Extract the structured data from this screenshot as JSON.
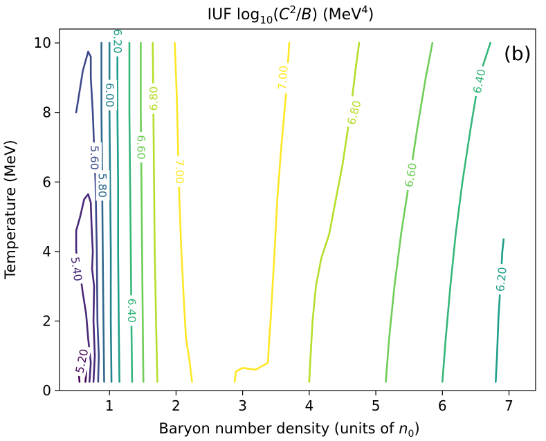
{
  "chart_data": {
    "type": "contour",
    "title_main": "IUF log",
    "title_sub": "10",
    "title_var_c": "C",
    "title_sup2": "2",
    "title_slash": "/",
    "title_var_b": "B",
    "title_units_prefix": ") (MeV",
    "title_sup4": "4",
    "title_units_suffix": ")",
    "panel_label": "(b)",
    "xlabel": "Baryon number density (units of ",
    "xlabel_var": "n",
    "xlabel_sub": "0",
    "xlabel_end": ")",
    "ylabel": "Temperature (MeV)",
    "xlim": [
      0.25,
      7.4
    ],
    "ylim": [
      0,
      10.4
    ],
    "x_ticks": [
      1,
      2,
      3,
      4,
      5,
      6,
      7
    ],
    "x_tick_labels": [
      "1",
      "2",
      "3",
      "4",
      "5",
      "6",
      "7"
    ],
    "y_ticks": [
      0,
      2,
      4,
      6,
      8,
      10
    ],
    "y_tick_labels": [
      "0",
      "2",
      "4",
      "6",
      "8",
      "10"
    ],
    "contours": [
      {
        "level": "5.20",
        "color": "#440154",
        "segments": [
          [
            [
              0.55,
              0.25
            ],
            [
              0.54,
              0.5
            ],
            [
              0.56,
              0.8
            ],
            [
              0.6,
              0.9
            ],
            [
              0.64,
              0.75
            ],
            [
              0.65,
              0.5
            ],
            [
              0.64,
              0.25
            ]
          ]
        ]
      },
      {
        "level": "5.40",
        "color": "#482878",
        "segments": [
          [
            [
              0.7,
              0.25
            ],
            [
              0.72,
              0.8
            ],
            [
              0.68,
              1.5
            ],
            [
              0.65,
              2.2
            ],
            [
              0.6,
              2.8
            ],
            [
              0.55,
              3.5
            ],
            [
              0.5,
              4.0
            ],
            [
              0.5,
              4.6
            ],
            [
              0.56,
              5.0
            ],
            [
              0.62,
              5.5
            ],
            [
              0.68,
              5.65
            ],
            [
              0.72,
              5.4
            ],
            [
              0.73,
              4.8
            ],
            [
              0.75,
              4.0
            ],
            [
              0.74,
              3.5
            ],
            [
              0.77,
              3.0
            ],
            [
              0.76,
              2.0
            ],
            [
              0.78,
              1.0
            ],
            [
              0.76,
              0.25
            ]
          ]
        ]
      },
      {
        "level": "5.60",
        "color": "#3e4989",
        "segments": [
          [
            [
              0.5,
              8.0
            ],
            [
              0.55,
              8.6
            ],
            [
              0.6,
              9.2
            ],
            [
              0.68,
              9.75
            ],
            [
              0.72,
              9.6
            ],
            [
              0.72,
              9.0
            ],
            [
              0.75,
              8.0
            ],
            [
              0.77,
              7.0
            ],
            [
              0.79,
              6.0
            ],
            [
              0.81,
              4.0
            ],
            [
              0.82,
              2.0
            ],
            [
              0.84,
              1.0
            ],
            [
              0.83,
              0.25
            ]
          ]
        ]
      },
      {
        "level": "5.80",
        "color": "#31688e",
        "segments": [
          [
            [
              0.88,
              10.0
            ],
            [
              0.88,
              8.0
            ],
            [
              0.89,
              6.0
            ],
            [
              0.9,
              4.0
            ],
            [
              0.91,
              2.0
            ],
            [
              0.92,
              0.25
            ]
          ]
        ]
      },
      {
        "level": "6.00",
        "color": "#26828e",
        "segments": [
          [
            [
              1.0,
              10.0
            ],
            [
              1.0,
              8.0
            ],
            [
              1.01,
              6.0
            ],
            [
              1.02,
              4.0
            ],
            [
              1.02,
              2.0
            ],
            [
              1.03,
              0.25
            ]
          ]
        ]
      },
      {
        "level": "6.20",
        "color": "#1f9e89",
        "segments": [
          [
            [
              1.12,
              10.0
            ],
            [
              1.12,
              8.0
            ],
            [
              1.13,
              6.0
            ],
            [
              1.13,
              4.0
            ],
            [
              1.14,
              2.0
            ],
            [
              1.15,
              0.25
            ]
          ],
          [
            [
              6.8,
              0.25
            ],
            [
              6.82,
              1.0
            ],
            [
              6.84,
              2.0
            ],
            [
              6.87,
              3.0
            ],
            [
              6.9,
              4.0
            ],
            [
              6.92,
              4.35
            ]
          ]
        ]
      },
      {
        "level": "6.40",
        "color": "#35b779",
        "segments": [
          [
            [
              1.3,
              10.0
            ],
            [
              1.3,
              8.0
            ],
            [
              1.31,
              6.0
            ],
            [
              1.32,
              4.0
            ],
            [
              1.33,
              2.0
            ],
            [
              1.34,
              0.25
            ]
          ],
          [
            [
              6.0,
              0.25
            ],
            [
              6.05,
              1.5
            ],
            [
              6.12,
              3.0
            ],
            [
              6.2,
              4.5
            ],
            [
              6.3,
              6.0
            ],
            [
              6.42,
              7.5
            ],
            [
              6.55,
              9.0
            ],
            [
              6.72,
              10.0
            ]
          ]
        ]
      },
      {
        "level": "6.60",
        "color": "#6ece58",
        "segments": [
          [
            [
              1.47,
              10.0
            ],
            [
              1.47,
              8.0
            ],
            [
              1.48,
              6.0
            ],
            [
              1.49,
              4.0
            ],
            [
              1.5,
              2.0
            ],
            [
              1.51,
              0.25
            ]
          ],
          [
            [
              5.15,
              0.25
            ],
            [
              5.2,
              1.5
            ],
            [
              5.28,
              3.0
            ],
            [
              5.38,
              4.5
            ],
            [
              5.5,
              6.0
            ],
            [
              5.62,
              7.5
            ],
            [
              5.75,
              9.0
            ],
            [
              5.85,
              10.0
            ]
          ]
        ]
      },
      {
        "level": "6.80",
        "color": "#b5de2b",
        "segments": [
          [
            [
              1.65,
              10.0
            ],
            [
              1.66,
              8.0
            ],
            [
              1.67,
              6.0
            ],
            [
              1.68,
              4.0
            ],
            [
              1.7,
              2.0
            ],
            [
              1.72,
              0.25
            ]
          ],
          [
            [
              4.0,
              0.25
            ],
            [
              4.02,
              1.0
            ],
            [
              4.05,
              2.0
            ],
            [
              4.1,
              3.0
            ],
            [
              4.18,
              3.8
            ],
            [
              4.3,
              4.5
            ],
            [
              4.4,
              5.5
            ],
            [
              4.5,
              6.5
            ],
            [
              4.58,
              7.5
            ],
            [
              4.65,
              8.5
            ],
            [
              4.7,
              9.3
            ],
            [
              4.75,
              10.0
            ]
          ]
        ]
      },
      {
        "level": "7.00",
        "color": "#fde725",
        "segments": [
          [
            [
              1.98,
              10.0
            ],
            [
              2.01,
              8.5
            ],
            [
              2.03,
              7.0
            ],
            [
              2.05,
              5.5
            ],
            [
              2.08,
              4.0
            ],
            [
              2.12,
              2.5
            ],
            [
              2.15,
              1.5
            ],
            [
              2.2,
              0.9
            ],
            [
              2.24,
              0.25
            ]
          ],
          [
            [
              3.7,
              10.0
            ],
            [
              3.65,
              8.5
            ],
            [
              3.58,
              7.0
            ],
            [
              3.52,
              5.5
            ],
            [
              3.48,
              4.0
            ],
            [
              3.45,
              3.0
            ],
            [
              3.42,
              2.0
            ],
            [
              3.4,
              1.5
            ],
            [
              3.38,
              0.8
            ],
            [
              3.2,
              0.6
            ],
            [
              3.0,
              0.65
            ],
            [
              2.9,
              0.55
            ],
            [
              2.88,
              0.25
            ]
          ]
        ]
      }
    ],
    "labels": [
      {
        "text": "5.20",
        "x": 0.58,
        "y": 0.85,
        "angle": -78,
        "color": "#440154"
      },
      {
        "text": "5.40",
        "x": 0.51,
        "y": 3.5,
        "angle": 82,
        "color": "#482878"
      },
      {
        "text": "5.60",
        "x": 0.78,
        "y": 6.7,
        "angle": 90,
        "color": "#3e4989"
      },
      {
        "text": "5.80",
        "x": 0.9,
        "y": 5.9,
        "angle": 90,
        "color": "#31688e"
      },
      {
        "text": "6.00",
        "x": 1.01,
        "y": 8.5,
        "angle": 90,
        "color": "#26828e"
      },
      {
        "text": "6.20",
        "x": 1.13,
        "y": 10.05,
        "angle": 90,
        "color": "#1f9e89"
      },
      {
        "text": "6.60",
        "x": 1.48,
        "y": 7.0,
        "angle": 90,
        "color": "#6ece58"
      },
      {
        "text": "6.40",
        "x": 1.34,
        "y": 2.3,
        "angle": 90,
        "color": "#35b779"
      },
      {
        "text": "6.80",
        "x": 1.66,
        "y": 8.4,
        "angle": -90,
        "color": "#b5de2b"
      },
      {
        "text": "7.00",
        "x": 2.06,
        "y": 6.3,
        "angle": 90,
        "color": "#fde725"
      },
      {
        "text": "7.00",
        "x": 3.6,
        "y": 9.0,
        "angle": -86,
        "color": "#fde725"
      },
      {
        "text": "6.80",
        "x": 4.67,
        "y": 8.0,
        "angle": -75,
        "color": "#b5de2b"
      },
      {
        "text": "6.60",
        "x": 5.52,
        "y": 6.2,
        "angle": -80,
        "color": "#6ece58"
      },
      {
        "text": "6.40",
        "x": 6.55,
        "y": 8.9,
        "angle": -78,
        "color": "#35b779"
      },
      {
        "text": "6.20",
        "x": 6.88,
        "y": 3.2,
        "angle": -84,
        "color": "#1f9e89"
      }
    ]
  }
}
